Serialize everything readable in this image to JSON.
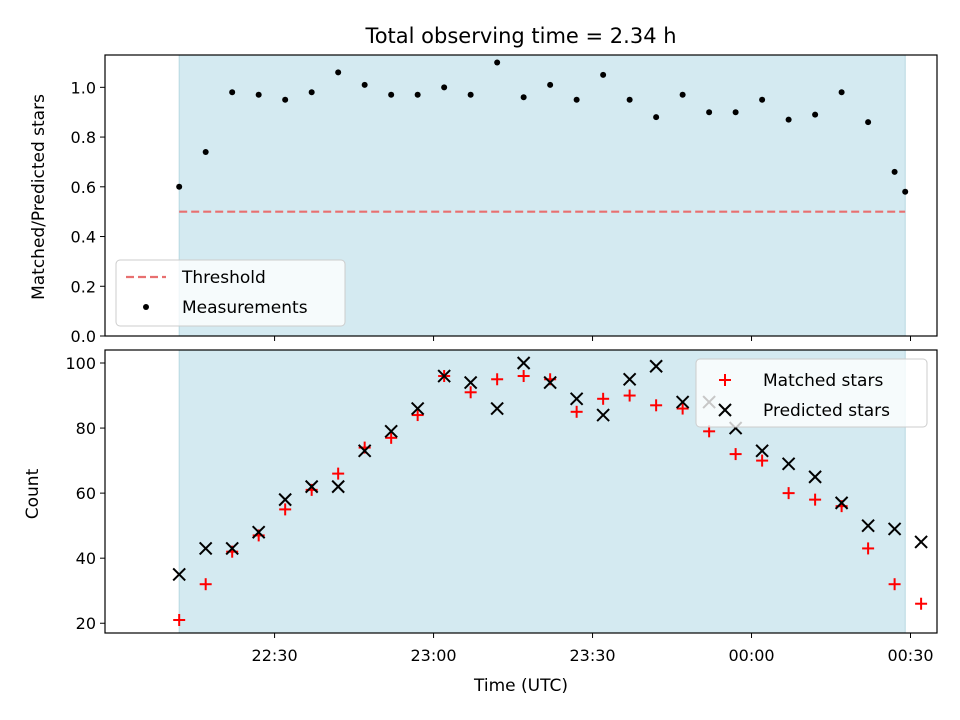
{
  "title": "Total observing time = 2.34 h",
  "chart_data": [
    {
      "type": "scatter",
      "ylabel": "Matched/Predicted stars",
      "ylim": [
        0.0,
        1.13
      ],
      "yticks": [
        0.0,
        0.2,
        0.4,
        0.6,
        0.8,
        1.0
      ],
      "ytick_labels": [
        "0.0",
        "0.2",
        "0.4",
        "0.6",
        "0.8",
        "1.0"
      ],
      "shaded_span": [
        "22:12",
        "00:29"
      ],
      "shade_color": "#d4eaf1",
      "threshold": {
        "name": "Threshold",
        "value": 0.5,
        "color": "#e87070",
        "style": "dashed"
      },
      "series": [
        {
          "name": "Measurements",
          "marker": "dot",
          "color": "#000000",
          "x": [
            "22:12",
            "22:17",
            "22:22",
            "22:27",
            "22:32",
            "22:37",
            "22:42",
            "22:47",
            "22:52",
            "22:57",
            "23:02",
            "23:07",
            "23:12",
            "23:17",
            "23:22",
            "23:27",
            "23:32",
            "23:37",
            "23:42",
            "23:47",
            "23:52",
            "23:57",
            "00:02",
            "00:07",
            "00:12",
            "00:17",
            "00:22",
            "00:27"
          ],
          "y": [
            0.6,
            0.74,
            0.98,
            0.97,
            0.95,
            0.98,
            1.06,
            1.01,
            0.97,
            0.97,
            1.0,
            0.97,
            1.1,
            0.96,
            1.01,
            0.95,
            1.05,
            0.95,
            0.88,
            0.97,
            0.9,
            0.9,
            0.95,
            0.87,
            0.89,
            0.98,
            0.86,
            0.66
          ]
        }
      ],
      "extra_point": {
        "x": "00:29",
        "y": 0.58
      },
      "legend": {
        "placement": "lower-left",
        "entries": [
          "Threshold",
          "Measurements"
        ]
      }
    },
    {
      "type": "scatter",
      "xlabel": "Time (UTC)",
      "ylabel": "Count",
      "ylim": [
        17,
        104
      ],
      "yticks": [
        20,
        40,
        60,
        80,
        100
      ],
      "ytick_labels": [
        "20",
        "40",
        "60",
        "80",
        "100"
      ],
      "xticks": [
        "22:30",
        "23:00",
        "23:30",
        "00:00",
        "00:30"
      ],
      "shaded_span": [
        "22:12",
        "00:29"
      ],
      "shade_color": "#d4eaf1",
      "series": [
        {
          "name": "Matched stars",
          "marker": "plus",
          "color": "#ff0000",
          "x": [
            "22:12",
            "22:17",
            "22:22",
            "22:27",
            "22:32",
            "22:37",
            "22:42",
            "22:47",
            "22:52",
            "22:57",
            "23:02",
            "23:07",
            "23:12",
            "23:17",
            "23:22",
            "23:27",
            "23:32",
            "23:37",
            "23:42",
            "23:47",
            "23:52",
            "23:57",
            "00:02",
            "00:07",
            "00:12",
            "00:17",
            "00:22",
            "00:27",
            "00:32"
          ],
          "y": [
            21,
            32,
            42,
            47,
            55,
            61,
            66,
            74,
            77,
            84,
            96,
            91,
            95,
            96,
            95,
            85,
            89,
            90,
            87,
            86,
            79,
            72,
            70,
            60,
            58,
            56,
            43,
            32,
            26
          ]
        },
        {
          "name": "Predicted stars",
          "marker": "x",
          "color": "#000000",
          "x": [
            "22:12",
            "22:17",
            "22:22",
            "22:27",
            "22:32",
            "22:37",
            "22:42",
            "22:47",
            "22:52",
            "22:57",
            "23:02",
            "23:07",
            "23:12",
            "23:17",
            "23:22",
            "23:27",
            "23:32",
            "23:37",
            "23:42",
            "23:47",
            "23:52",
            "23:57",
            "00:02",
            "00:07",
            "00:12",
            "00:17",
            "00:22",
            "00:27",
            "00:32"
          ],
          "y": [
            35,
            43,
            43,
            48,
            58,
            62,
            62,
            73,
            79,
            86,
            96,
            94,
            86,
            100,
            94,
            89,
            84,
            95,
            99,
            88,
            88,
            80,
            73,
            69,
            65,
            57,
            50,
            49,
            45
          ]
        }
      ],
      "legend": {
        "placement": "top-right",
        "entries": [
          "Matched stars",
          "Predicted stars"
        ]
      }
    }
  ]
}
